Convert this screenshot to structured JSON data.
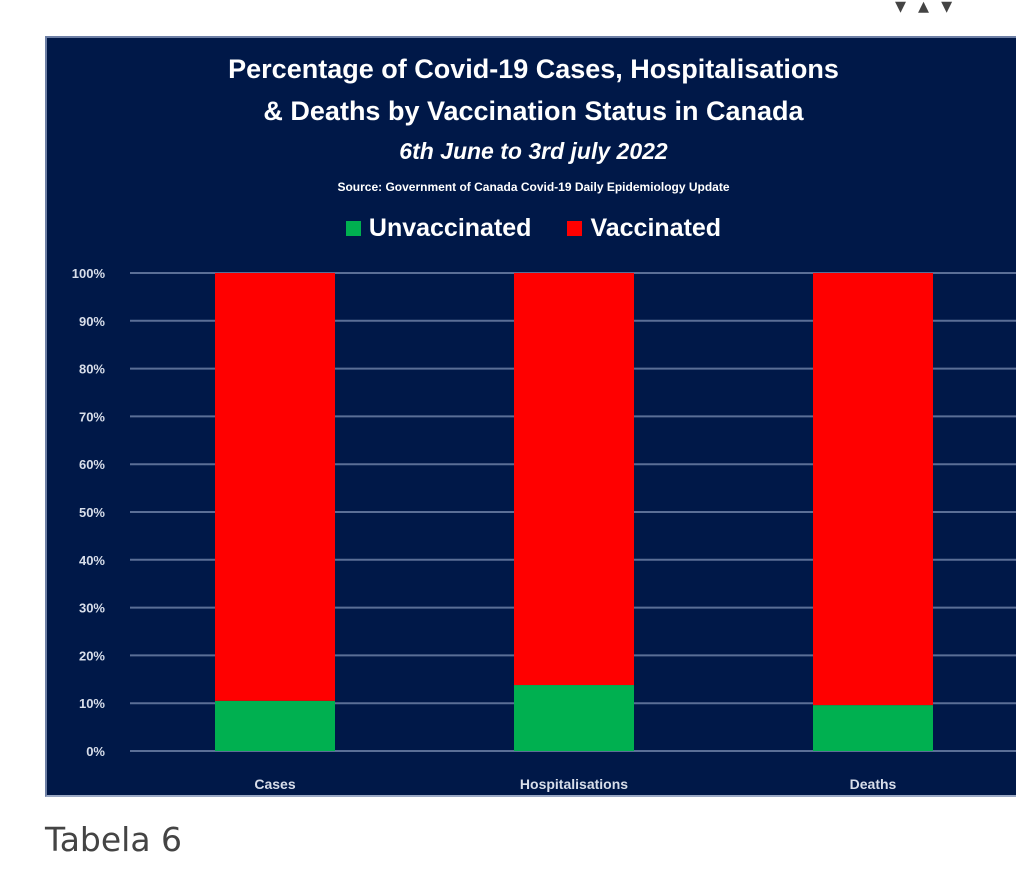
{
  "page": {
    "caption": "Tabela 6"
  },
  "colors": {
    "background": "#001848",
    "unvaccinated": "#00b050",
    "vaccinated": "#ff0000",
    "gridline": "#5a6e96",
    "text": "#ffffff"
  },
  "chart_data": {
    "type": "bar",
    "stacked": true,
    "title": "Percentage of Covid-19 Cases, Hospitalisations & Deaths by Vaccination Status in Canada",
    "title_lines": [
      "Percentage of Covid-19 Cases, Hospitalisations",
      "& Deaths by Vaccination Status in Canada"
    ],
    "subtitle": "6th June to 3rd july 2022",
    "source": "Source: Government of Canada  Covid-19 Daily Epidemiology Update",
    "xlabel": "",
    "ylabel": "",
    "categories": [
      "Cases",
      "Hospitalisations",
      "Deaths"
    ],
    "series": [
      {
        "name": "Unvaccinated",
        "color": "#00b050",
        "values": [
          10.5,
          13.8,
          9.6
        ]
      },
      {
        "name": "Vaccinated",
        "color": "#ff0000",
        "values": [
          89.5,
          86.2,
          90.4
        ]
      }
    ],
    "ylim": [
      0,
      100
    ],
    "yticks": [
      0,
      10,
      20,
      30,
      40,
      50,
      60,
      70,
      80,
      90,
      100
    ],
    "ytick_labels": [
      "0%",
      "10%",
      "20%",
      "30%",
      "40%",
      "50%",
      "60%",
      "70%",
      "80%",
      "90%",
      "100%"
    ],
    "grid": true,
    "legend_position": "top-center"
  }
}
